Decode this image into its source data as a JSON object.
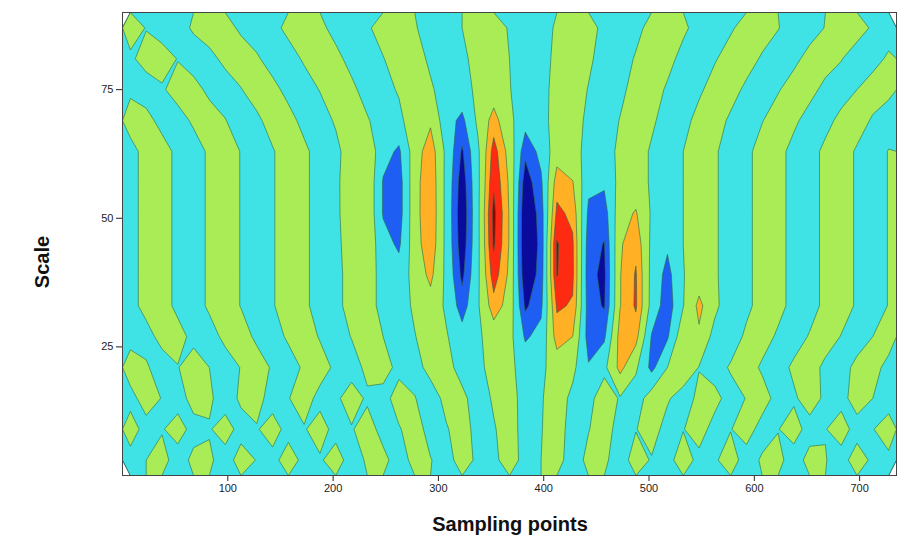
{
  "chart_data": {
    "type": "contour",
    "xlabel": "Sampling points",
    "ylabel": "Scale",
    "xlim": [
      0,
      735
    ],
    "ylim": [
      0,
      90
    ],
    "xticks": [
      100,
      200,
      300,
      400,
      500,
      600,
      700
    ],
    "yticks": [
      25,
      50,
      75
    ],
    "levels": [
      -8,
      -4.5,
      -2.5,
      0,
      2.5,
      4.5,
      6.5
    ],
    "colors": [
      "#0a0a9c",
      "#1f5ef2",
      "#3fe3e6",
      "#a9ec55",
      "#ffb024",
      "#ff2a12",
      "#9a0000"
    ],
    "values": [
      [
        -0.9,
        0.0,
        0.9,
        -1.2,
        0.6,
        0.4,
        -1.1,
        1.0,
        -0.1,
        -0.8,
        1.2,
        -0.7,
        -0.3,
        1.1,
        -1.1,
        0.3,
        0.7,
        -1.2,
        0.8,
        0.1,
        -1.0,
        1.1,
        -0.5,
        -0.6,
        1.2,
        -0.9,
        0.0,
        0.9,
        -1.2,
        0.6,
        0.4,
        -1.1,
        1.0,
        -0.2,
        -0.8,
        1.2,
        -0.7,
        -0.3,
        1.1,
        -1.1,
        0.3,
        0.7,
        -1.2,
        0.8,
        0.1,
        -1.0,
        1.2,
        -0.5,
        -0.5
      ],
      [
        1.1,
        -0.9,
        -0.2,
        1.1,
        -0.9,
        -0.2,
        1.1,
        -0.9,
        -0.2,
        1.1,
        -0.9,
        -0.2,
        1.1,
        -0.9,
        -0.2,
        1.1,
        -0.9,
        -0.2,
        1.1,
        -0.9,
        -0.2,
        1.1,
        -0.9,
        -0.2,
        1.1,
        -1.0,
        -0.1,
        1.1,
        -1.0,
        -0.1,
        1.1,
        -1.0,
        -0.1,
        1.1,
        -1.0,
        -0.1,
        1.1,
        -1.0,
        -0.1,
        1.1,
        -1.0,
        -0.1,
        1.1,
        -1.0,
        -0.1,
        1.1,
        -1.0,
        -0.1,
        1.1
      ],
      [
        -0.8,
        1.1,
        -0.1,
        -1.1,
        0.9,
        0.4,
        -1.2,
        0.4,
        0.9,
        -1.1,
        -0.1,
        1.1,
        -0.8,
        -0.5,
        1.2,
        -0.4,
        -0.9,
        1.1,
        0.1,
        -1.2,
        0.7,
        0.6,
        -1.2,
        0.3,
        1.0,
        -1.0,
        -0.2,
        1.2,
        -0.6,
        -0.7,
        1.2,
        -0.2,
        -1.3,
        1.3,
        0.3,
        -1.2,
        0.6,
        0.8,
        -1.1,
        0.1,
        1.1,
        -0.9,
        -0.4,
        1.2,
        -0.5,
        -0.8,
        1.1,
        0.0,
        -1.1
      ],
      [
        1.2,
        0.3,
        -1.2,
        -0.1,
        1.2,
        0.0,
        -1.2,
        0.1,
        1.2,
        -0.3,
        -1.2,
        0.4,
        1.1,
        -0.5,
        -1.1,
        0.6,
        1.0,
        -0.7,
        -0.9,
        0.8,
        0.8,
        -0.9,
        -0.7,
        1.0,
        0.6,
        -1.1,
        -0.5,
        1.1,
        0.6,
        -2.3,
        -0.6,
        3.2,
        0.4,
        -3.2,
        0.0,
        1.9,
        -0.1,
        -1.2,
        0.3,
        1.2,
        -0.4,
        -1.1,
        0.5,
        1.1,
        -0.6,
        -1.0,
        0.7,
        0.9,
        -0.8
      ],
      [
        -0.9,
        -0.9,
        0.8,
        0.9,
        -0.7,
        -1.0,
        0.6,
        1.1,
        -0.5,
        -1.1,
        0.4,
        1.2,
        -0.2,
        -1.2,
        0.1,
        1.2,
        0.0,
        -1.2,
        -0.1,
        1.2,
        0.2,
        -1.5,
        -0.4,
        1.1,
        0.8,
        -2.8,
        -1.8,
        3.5,
        2.5,
        -3.5,
        -2.9,
        3.4,
        3.3,
        -2.7,
        -2.8,
        1.8,
        2.1,
        -0.9,
        -1.4,
        0.5,
        1.1,
        -0.4,
        -1.2,
        0.2,
        1.2,
        -0.1,
        -1.2,
        0.0,
        1.2
      ],
      [
        -0.8,
        0.8,
        1.0,
        -0.6,
        -1.1,
        0.4,
        1.2,
        -0.1,
        -1.2,
        -0.2,
        1.2,
        0.5,
        -1.0,
        -0.7,
        0.9,
        0.9,
        -0.7,
        -1.1,
        0.4,
        1.5,
        -0.4,
        -3.6,
        -0.3,
        3.7,
        1.5,
        -4.9,
        -3.0,
        4.8,
        4.3,
        -3.6,
        -4.7,
        2.4,
        4.8,
        -0.9,
        -3.8,
        -0.1,
        3.1,
        0.6,
        -1.6,
        -0.6,
        1.0,
        0.8,
        -0.8,
        -1.0,
        0.6,
        1.1,
        -0.3,
        -1.2,
        0.1
      ],
      [
        -0.8,
        0.8,
        1.0,
        -0.6,
        -1.1,
        0.4,
        1.2,
        -0.1,
        -1.2,
        -0.2,
        1.2,
        0.5,
        -1.0,
        -0.7,
        0.9,
        0.9,
        -0.7,
        -1.5,
        0.9,
        3.1,
        -0.6,
        -5.0,
        -0.5,
        5.6,
        2.0,
        -6.2,
        -3.7,
        6.6,
        4.9,
        -3.9,
        -5.0,
        2.4,
        4.7,
        -0.8,
        -3.3,
        -0.1,
        1.2,
        0.3,
        -1.1,
        -0.6,
        1.0,
        0.8,
        -0.8,
        -1.0,
        0.6,
        1.1,
        -0.3,
        -1.2,
        0.1
      ],
      [
        -0.8,
        0.8,
        1.0,
        -0.6,
        -1.1,
        0.4,
        1.2,
        -0.1,
        -1.2,
        -0.2,
        1.2,
        0.5,
        -1.0,
        -0.7,
        1.3,
        1.8,
        -1.6,
        -2.9,
        1.4,
        4.1,
        -0.7,
        -5.8,
        -0.6,
        6.8,
        2.3,
        -6.7,
        -3.9,
        6.7,
        4.8,
        -3.7,
        -4.6,
        2.2,
        4.0,
        -0.6,
        -2.1,
        0.0,
        1.2,
        0.3,
        -1.1,
        -0.6,
        1.0,
        0.8,
        -0.8,
        -1.0,
        0.6,
        1.1,
        -0.3,
        -1.2,
        0.1
      ],
      [
        -0.8,
        0.8,
        1.0,
        -0.6,
        -1.1,
        0.4,
        1.2,
        -0.1,
        -1.2,
        -0.2,
        1.2,
        0.5,
        -1.0,
        -0.7,
        1.9,
        2.0,
        -2.7,
        -3.6,
        1.6,
        4.3,
        -0.7,
        -6.1,
        -0.6,
        7.1,
        2.3,
        -6.6,
        -3.6,
        5.0,
        4.0,
        -3.0,
        -3.6,
        1.6,
        2.7,
        -0.3,
        -1.2,
        0.0,
        1.2,
        0.3,
        -1.1,
        -0.6,
        1.0,
        0.8,
        -0.8,
        -1.0,
        0.6,
        1.1,
        -0.3,
        -1.2,
        0.1
      ],
      [
        -0.8,
        0.8,
        1.0,
        -0.6,
        -1.1,
        0.4,
        1.2,
        -0.1,
        -1.2,
        -0.2,
        1.2,
        0.5,
        -1.0,
        -0.7,
        2.0,
        2.0,
        -2.7,
        -3.6,
        1.6,
        4.2,
        -0.7,
        -5.7,
        -0.6,
        6.2,
        2.1,
        -5.7,
        -2.9,
        3.6,
        2.6,
        -1.9,
        -2.1,
        0.8,
        1.1,
        -0.3,
        -1.2,
        0.0,
        1.2,
        0.3,
        -1.1,
        -0.6,
        1.0,
        0.8,
        -0.8,
        -1.0,
        0.6,
        1.1,
        -0.3,
        -1.2,
        0.1
      ],
      [
        -0.8,
        0.8,
        1.0,
        -0.6,
        -1.1,
        0.4,
        1.2,
        -0.1,
        -1.2,
        -0.2,
        1.2,
        0.5,
        -1.0,
        -0.7,
        1.4,
        1.8,
        -1.6,
        -2.9,
        1.3,
        3.8,
        -0.6,
        -4.8,
        -0.5,
        5.4,
        1.6,
        -4.0,
        -1.8,
        1.4,
        0.8,
        -0.7,
        -1.0,
        0.5,
        1.1,
        -0.3,
        -1.2,
        0.0,
        1.2,
        0.3,
        -1.1,
        -0.6,
        1.0,
        0.8,
        -0.8,
        -1.0,
        0.6,
        1.1,
        -0.3,
        -1.2,
        0.1
      ],
      [
        1.0,
        0.8,
        -0.8,
        -1.0,
        0.4,
        1.2,
        0.1,
        -1.2,
        -0.5,
        1.0,
        0.8,
        -0.7,
        -1.1,
        0.3,
        1.2,
        0.2,
        -1.1,
        -0.8,
        1.9,
        2.1,
        -1.5,
        -3.1,
        0.5,
        3.4,
        0.6,
        -1.6,
        -0.7,
        0.8,
        1.0,
        -0.5,
        -1.2,
        0.1,
        1.2,
        0.4,
        -1.0,
        -0.8,
        0.8,
        1.0,
        -0.4,
        -1.2,
        -0.1,
        1.2,
        0.5,
        -1.0,
        -0.8,
        0.7,
        1.1,
        -0.3,
        -1.2
      ],
      [
        -0.4,
        -1.2,
        -0.3,
        1.0,
        0.9,
        -0.6,
        -1.2,
        -0.1,
        1.1,
        0.7,
        -0.7,
        -1.1,
        0.1,
        1.2,
        0.5,
        -0.9,
        -1.0,
        0.3,
        1.2,
        0.3,
        -1.0,
        -0.9,
        0.5,
        1.2,
        0.1,
        -1.1,
        -0.7,
        0.7,
        1.1,
        -0.1,
        -1.2,
        -0.6,
        0.9,
        1.0,
        -0.3,
        -1.2,
        -0.4,
        1.0,
        0.9,
        -0.5,
        -1.2,
        -0.2,
        1.1,
        0.8,
        -0.7,
        -1.1,
        0.0,
        1.2,
        0.6
      ],
      [
        -0.4,
        0.9,
        1.1,
        -0.1,
        -1.2,
        -0.7,
        0.6,
        1.2,
        0.3,
        -1.0,
        -1.0,
        0.3,
        1.2,
        0.6,
        -0.7,
        -1.2,
        -0.1,
        1.1,
        0.9,
        -0.4,
        -1.2,
        -0.5,
        0.8,
        1.1,
        0.0,
        -1.1,
        -0.8,
        0.5,
        1.2,
        0.4,
        -0.9,
        -1.0,
        0.2,
        1.2,
        0.7,
        -0.7,
        -1.2,
        -0.2,
        1.0,
        1.0,
        -0.3,
        -1.2,
        -0.6,
        0.8,
        1.1,
        0.1,
        -1.1,
        -0.9,
        0.4
      ],
      [
        1.0,
        -0.1,
        -1.1,
        -0.9,
        0.3,
        1.2,
        0.8,
        -0.4,
        -1.2,
        -0.7,
        0.6,
        1.2,
        0.5,
        -0.7,
        -1.2,
        -0.3,
        0.9,
        1.1,
        0.2,
        -1.0,
        -1.1,
        0.0,
        1.1,
        1.0,
        -0.2,
        -1.1,
        -0.9,
        0.3,
        1.2,
        0.7,
        -0.5,
        -1.2,
        -0.6,
        0.7,
        1.2,
        0.4,
        -0.8,
        -1.2,
        -0.3,
        0.9,
        1.1,
        0.1,
        -1.0,
        -1.0,
        0.1,
        1.1,
        0.9,
        -0.3,
        -1.2
      ]
    ]
  }
}
